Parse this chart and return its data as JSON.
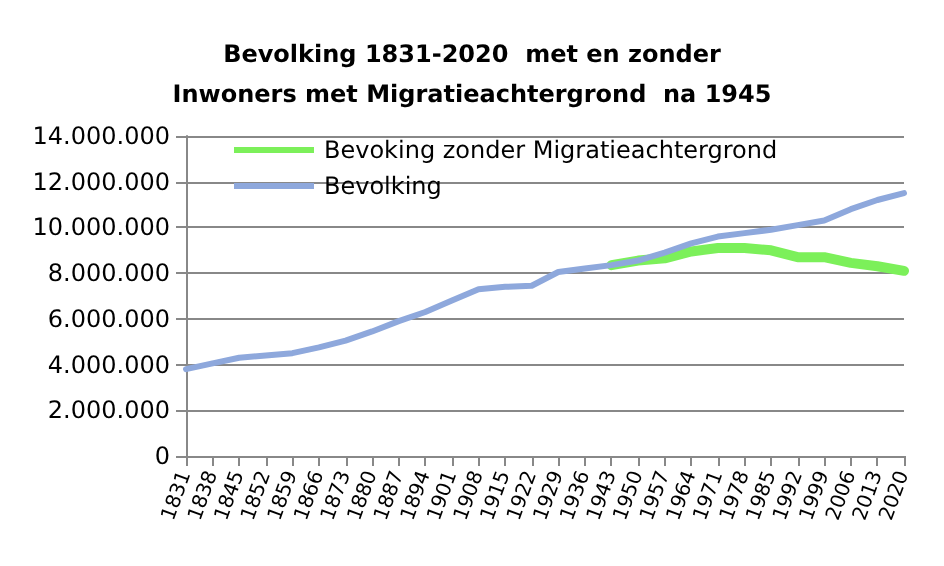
{
  "chart_data": {
    "type": "line",
    "title": "Bevolking 1831-2020  met en zonder\nInwoners met Migratieachtergrond  na 1945",
    "categories": [
      "1831",
      "1838",
      "1845",
      "1852",
      "1859",
      "1866",
      "1873",
      "1880",
      "1887",
      "1894",
      "1901",
      "1908",
      "1915",
      "1922",
      "1929",
      "1936",
      "1943",
      "1950",
      "1957",
      "1964",
      "1971",
      "1978",
      "1985",
      "1992",
      "1999",
      "2006",
      "2013",
      "2020"
    ],
    "series": [
      {
        "name": "Bevoking zonder Migratieachtergrond",
        "color": "#7cf05a",
        "values": [
          null,
          null,
          null,
          null,
          null,
          null,
          null,
          null,
          null,
          null,
          null,
          null,
          null,
          null,
          null,
          null,
          8350000,
          8550000,
          8650000,
          8950000,
          9100000,
          9100000,
          9000000,
          8700000,
          8700000,
          8450000,
          8300000,
          8100000
        ]
      },
      {
        "name": "Bevolking",
        "color": "#8ea8dc",
        "values": [
          3800000,
          4050000,
          4300000,
          4400000,
          4500000,
          4750000,
          5050000,
          5450000,
          5900000,
          6300000,
          6800000,
          7300000,
          7400000,
          7450000,
          8050000,
          8200000,
          8350000,
          8550000,
          8900000,
          9300000,
          9600000,
          9750000,
          9900000,
          10100000,
          10300000,
          10800000,
          11200000,
          11500000
        ]
      }
    ],
    "ylim": [
      0,
      14000000
    ],
    "yticks": [
      {
        "value": 0,
        "label": "0"
      },
      {
        "value": 2000000,
        "label": "2.000.000"
      },
      {
        "value": 4000000,
        "label": "4.000.000"
      },
      {
        "value": 6000000,
        "label": "6.000.000"
      },
      {
        "value": 8000000,
        "label": "8.000.000"
      },
      {
        "value": 10000000,
        "label": "10.000.000"
      },
      {
        "value": 12000000,
        "label": "12.000.000"
      },
      {
        "value": 14000000,
        "label": "14.000.000"
      }
    ],
    "grid": "y",
    "legend": "top left",
    "marker": "none",
    "line_style": "solid"
  }
}
